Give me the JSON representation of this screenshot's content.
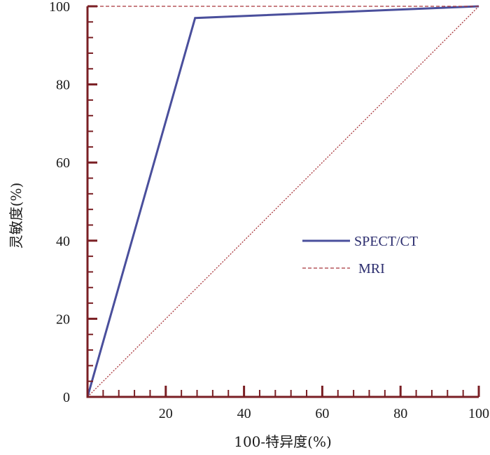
{
  "chart_data": {
    "type": "line",
    "xlabel": "100-特异度(%)",
    "ylabel": "灵敏度(%)",
    "xlim": [
      0,
      100
    ],
    "ylim": [
      0,
      100
    ],
    "x_ticks": [
      20,
      40,
      60,
      80,
      100
    ],
    "y_ticks": [
      0,
      20,
      40,
      60,
      80,
      100
    ],
    "legend_position": "right",
    "series": [
      {
        "name": "SPECT/CT",
        "color": "#4a4f9c",
        "style": "solid",
        "x": [
          0,
          27.5,
          100
        ],
        "y": [
          0,
          97,
          100
        ]
      },
      {
        "name": "MRI",
        "color": "#a8353a",
        "style": "dashed",
        "x": [
          0,
          0,
          100
        ],
        "y": [
          0,
          100,
          100
        ]
      }
    ],
    "reference_line": {
      "color": "#a8353a",
      "style": "dotted",
      "x": [
        0,
        100
      ],
      "y": [
        0,
        100
      ]
    },
    "axis_color": "#7a1f24"
  }
}
